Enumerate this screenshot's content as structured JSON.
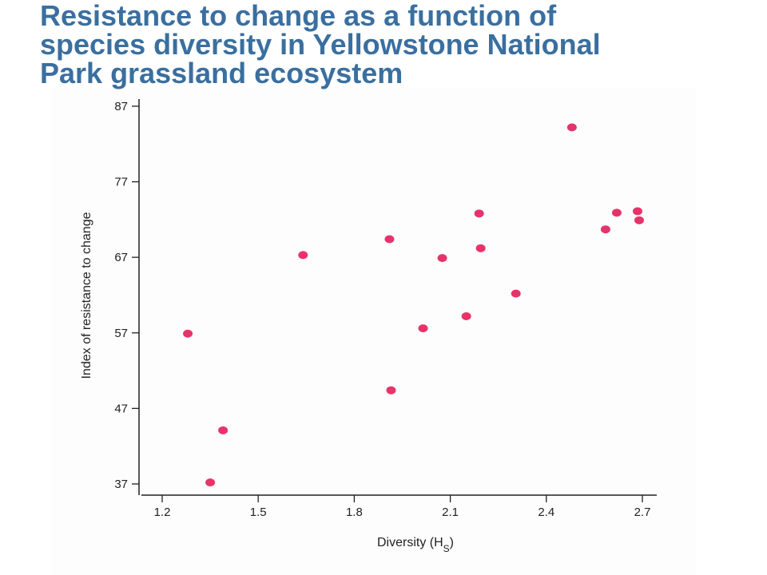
{
  "title_lines": [
    "Resistance to change as a function of",
    "species diversity in Yellowstone National",
    "Park grassland ecosystem"
  ],
  "colors": {
    "title": "#3a6f9f",
    "point": "#e8336a",
    "axis": "#222222"
  },
  "chart_data": {
    "type": "scatter",
    "title": "",
    "xlabel": "Diversity (H",
    "xlabel_subscript": "S",
    "xlabel_suffix": ")",
    "ylabel": "Index of resistance to change",
    "xlim": [
      1.15,
      2.7
    ],
    "ylim": [
      35.8,
      88
    ],
    "xticks": [
      1.2,
      1.5,
      1.8,
      2.1,
      2.4,
      2.7
    ],
    "xtick_labels": [
      "1.2",
      "1.5",
      "1.8",
      "2.1",
      "2.4",
      "2.7"
    ],
    "yticks": [
      37,
      47,
      57,
      67,
      77,
      87
    ],
    "ytick_labels": [
      "37",
      "47",
      "57",
      "67",
      "77",
      "87"
    ],
    "grid": false,
    "points": [
      {
        "x": 1.28,
        "y": 56.9
      },
      {
        "x": 1.35,
        "y": 37.2
      },
      {
        "x": 1.39,
        "y": 44.1
      },
      {
        "x": 1.64,
        "y": 67.3
      },
      {
        "x": 1.91,
        "y": 69.4
      },
      {
        "x": 1.915,
        "y": 49.4
      },
      {
        "x": 2.015,
        "y": 57.6
      },
      {
        "x": 2.075,
        "y": 66.9
      },
      {
        "x": 2.15,
        "y": 59.2
      },
      {
        "x": 2.19,
        "y": 72.8
      },
      {
        "x": 2.195,
        "y": 68.2
      },
      {
        "x": 2.305,
        "y": 62.2
      },
      {
        "x": 2.48,
        "y": 84.2
      },
      {
        "x": 2.585,
        "y": 70.7
      },
      {
        "x": 2.62,
        "y": 72.9
      },
      {
        "x": 2.685,
        "y": 73.1
      },
      {
        "x": 2.69,
        "y": 71.9
      }
    ]
  }
}
